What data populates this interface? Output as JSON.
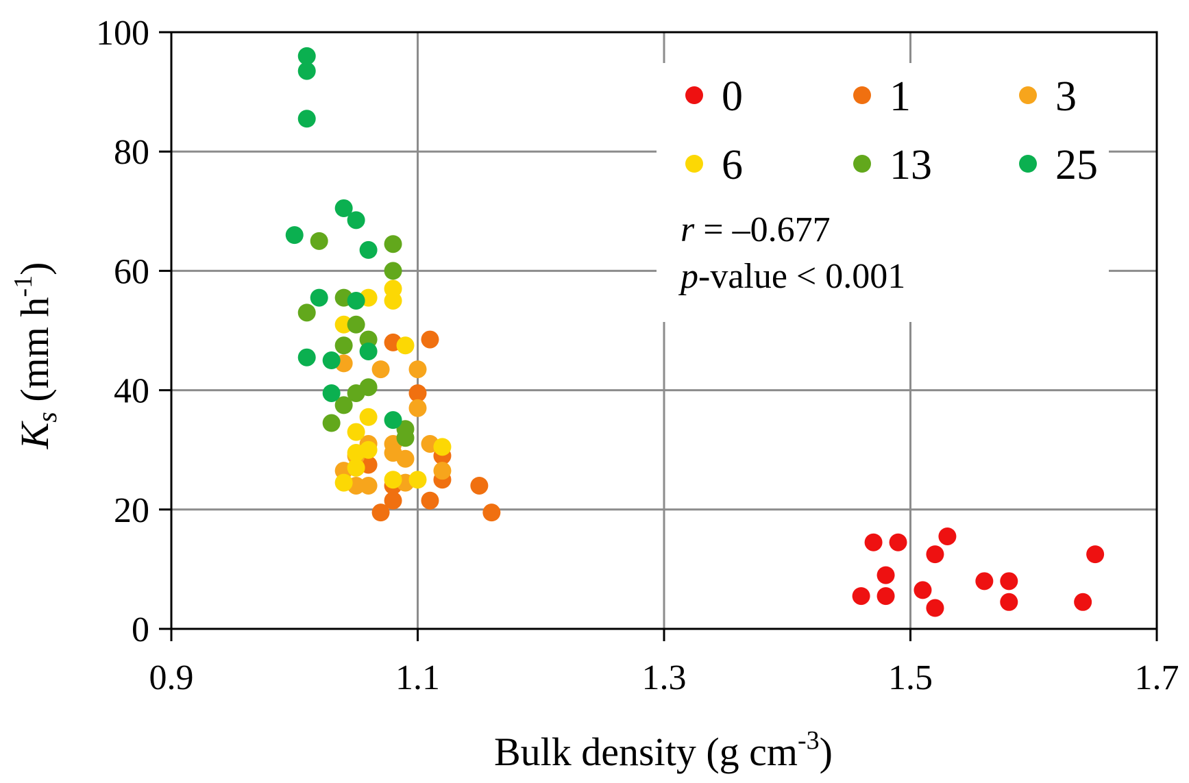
{
  "chart_data": {
    "type": "scatter",
    "title": "",
    "xlabel": "Bulk density",
    "xlabel_unit": "g cm",
    "xlabel_unit_exp": "-3",
    "ylabel_symbol": "K",
    "ylabel_subscript": "s",
    "ylabel_unit": "mm h",
    "ylabel_unit_exp": "-1",
    "xlim": [
      0.9,
      1.7
    ],
    "ylim": [
      0,
      100
    ],
    "xticks": [
      "0.9",
      "1.1",
      "1.3",
      "1.5",
      "1.7"
    ],
    "yticks": [
      "0",
      "20",
      "40",
      "60",
      "80",
      "100"
    ],
    "grid": true,
    "legend_position": "top-right",
    "annotation": {
      "r_symbol": "r",
      "r_text": " = –0.677",
      "p_symbol": "p",
      "p_text": "-value < 0.001"
    },
    "series": [
      {
        "name": "0",
        "color": "#ee1111",
        "points": [
          [
            1.46,
            5.5
          ],
          [
            1.47,
            14.5
          ],
          [
            1.48,
            9.0
          ],
          [
            1.48,
            5.5
          ],
          [
            1.49,
            14.5
          ],
          [
            1.51,
            6.5
          ],
          [
            1.52,
            12.5
          ],
          [
            1.52,
            3.5
          ],
          [
            1.53,
            15.5
          ],
          [
            1.56,
            8.0
          ],
          [
            1.58,
            8.0
          ],
          [
            1.58,
            4.5
          ],
          [
            1.64,
            4.5
          ],
          [
            1.65,
            12.5
          ]
        ]
      },
      {
        "name": "1",
        "color": "#f07010",
        "points": [
          [
            1.06,
            27.5
          ],
          [
            1.07,
            19.5
          ],
          [
            1.08,
            48.0
          ],
          [
            1.08,
            24.0
          ],
          [
            1.08,
            21.5
          ],
          [
            1.1,
            39.5
          ],
          [
            1.11,
            48.5
          ],
          [
            1.11,
            21.5
          ],
          [
            1.12,
            29.0
          ],
          [
            1.12,
            25.0
          ],
          [
            1.15,
            24.0
          ],
          [
            1.16,
            19.5
          ]
        ]
      },
      {
        "name": "3",
        "color": "#f7a51c",
        "points": [
          [
            1.04,
            44.5
          ],
          [
            1.04,
            26.5
          ],
          [
            1.05,
            29.0
          ],
          [
            1.05,
            24.0
          ],
          [
            1.06,
            31.0
          ],
          [
            1.06,
            24.0
          ],
          [
            1.07,
            43.5
          ],
          [
            1.08,
            31.0
          ],
          [
            1.08,
            29.5
          ],
          [
            1.09,
            24.5
          ],
          [
            1.09,
            28.5
          ],
          [
            1.1,
            43.5
          ],
          [
            1.1,
            37.0
          ],
          [
            1.11,
            31.0
          ],
          [
            1.12,
            26.5
          ]
        ]
      },
      {
        "name": "6",
        "color": "#fcd804",
        "points": [
          [
            1.04,
            51.0
          ],
          [
            1.04,
            24.5
          ],
          [
            1.05,
            33.0
          ],
          [
            1.05,
            29.5
          ],
          [
            1.05,
            27.0
          ],
          [
            1.06,
            55.5
          ],
          [
            1.06,
            35.5
          ],
          [
            1.06,
            30.0
          ],
          [
            1.08,
            57.0
          ],
          [
            1.08,
            55.0
          ],
          [
            1.08,
            25.0
          ],
          [
            1.09,
            47.5
          ],
          [
            1.1,
            25.0
          ],
          [
            1.12,
            30.5
          ]
        ]
      },
      {
        "name": "13",
        "color": "#62a81c",
        "points": [
          [
            1.01,
            53.0
          ],
          [
            1.02,
            65.0
          ],
          [
            1.03,
            34.5
          ],
          [
            1.04,
            55.5
          ],
          [
            1.04,
            47.5
          ],
          [
            1.04,
            37.5
          ],
          [
            1.05,
            51.0
          ],
          [
            1.05,
            39.5
          ],
          [
            1.06,
            48.5
          ],
          [
            1.06,
            40.5
          ],
          [
            1.08,
            64.5
          ],
          [
            1.08,
            60.0
          ],
          [
            1.09,
            33.5
          ],
          [
            1.09,
            32.0
          ]
        ]
      },
      {
        "name": "25",
        "color": "#0bb050",
        "points": [
          [
            1.0,
            66.0
          ],
          [
            1.01,
            96.0
          ],
          [
            1.01,
            93.5
          ],
          [
            1.01,
            85.5
          ],
          [
            1.01,
            45.5
          ],
          [
            1.02,
            55.5
          ],
          [
            1.03,
            45.0
          ],
          [
            1.03,
            39.5
          ],
          [
            1.04,
            70.5
          ],
          [
            1.05,
            68.5
          ],
          [
            1.05,
            55.0
          ],
          [
            1.06,
            63.5
          ],
          [
            1.06,
            46.5
          ],
          [
            1.08,
            35.0
          ]
        ]
      }
    ]
  }
}
